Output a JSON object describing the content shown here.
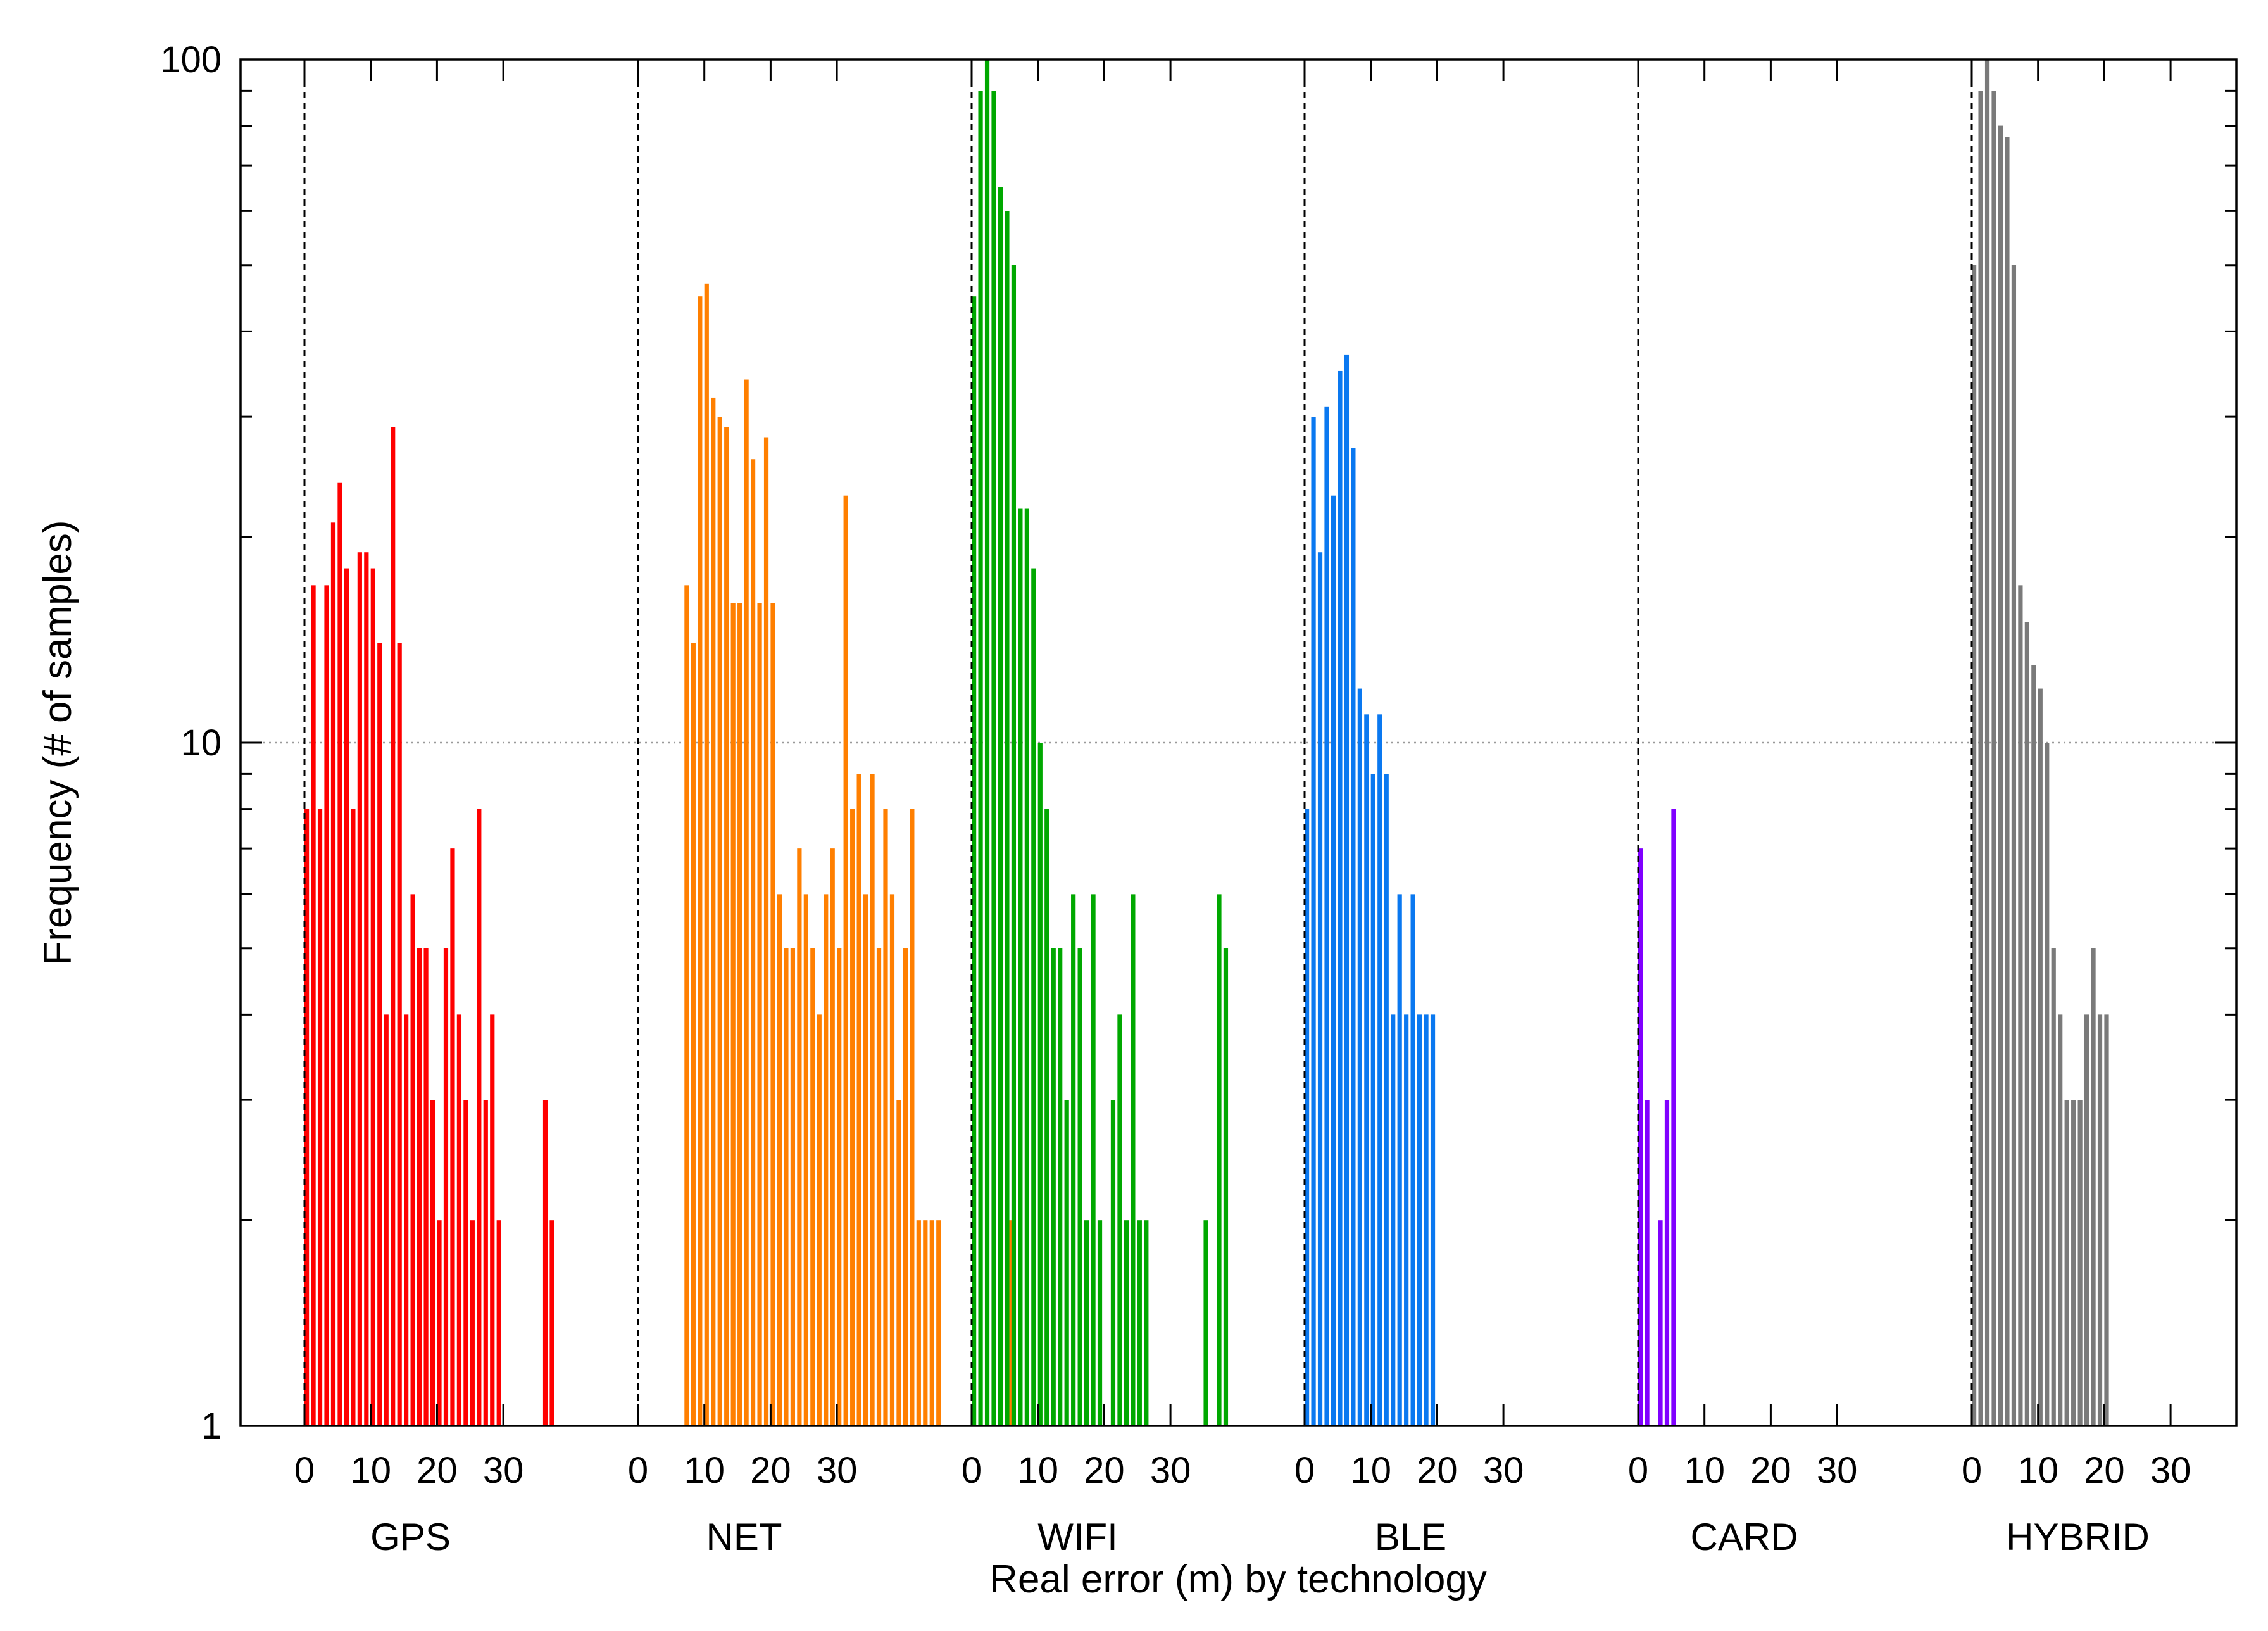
{
  "chart_data": {
    "type": "bar",
    "title": "",
    "xlabel": "Real error (m) by technology",
    "ylabel": "Frequency (# of samples)",
    "yscale": "log",
    "ylim": [
      1,
      100
    ],
    "y_ticks": [
      "1",
      "10",
      "100"
    ],
    "x_tick_labels": [
      "0",
      "10",
      "20",
      "30"
    ],
    "grid": "horizontal dotted line at 10",
    "bin_width_m": 1,
    "groups": [
      {
        "name": "GPS",
        "color": "#ff0000",
        "values": [
          8,
          17,
          8,
          17,
          21,
          24,
          18,
          8,
          19,
          19,
          18,
          14,
          4,
          29,
          14,
          4,
          6,
          5,
          5,
          3,
          2,
          5,
          7,
          4,
          3,
          2,
          8,
          3,
          4,
          2,
          0,
          0,
          0,
          0,
          0,
          0,
          3,
          2
        ]
      },
      {
        "name": "NET",
        "color": "#ff7f00",
        "values": [
          0,
          0,
          0,
          0,
          0,
          0,
          0,
          17,
          14,
          45,
          47,
          32,
          30,
          29,
          16,
          16,
          34,
          26,
          16,
          28,
          16,
          6,
          5,
          5,
          7,
          6,
          5,
          4,
          6,
          7,
          5,
          23,
          8,
          9,
          6,
          9,
          5,
          8,
          6,
          3,
          5,
          8,
          2,
          2,
          2,
          2,
          0,
          0,
          0,
          0,
          0,
          0,
          0,
          0,
          0,
          0,
          2
        ]
      },
      {
        "name": "WIFI",
        "color": "#00a800",
        "values": [
          45,
          90,
          100,
          90,
          65,
          60,
          50,
          22,
          22,
          18,
          10,
          8,
          5,
          5,
          3,
          6,
          5,
          2,
          6,
          2,
          0,
          3,
          4,
          2,
          6,
          2,
          2,
          0,
          0,
          0,
          0,
          0,
          0,
          0,
          0,
          2,
          0,
          6,
          5
        ]
      },
      {
        "name": "BLE",
        "color": "#0a78f0",
        "values": [
          8,
          30,
          19,
          31,
          23,
          35,
          37,
          27,
          12,
          11,
          9,
          11,
          9,
          4,
          6,
          4,
          6,
          4,
          4,
          4
        ]
      },
      {
        "name": "CARD",
        "color": "#8000ff",
        "values": [
          7,
          3,
          0,
          2,
          3,
          8
        ]
      },
      {
        "name": "HYBRID",
        "color": "#7a7a7a",
        "values": [
          50,
          90,
          100,
          90,
          80,
          77,
          50,
          17,
          15,
          13,
          12,
          10,
          5,
          4,
          3,
          3,
          3,
          4,
          5,
          4,
          4
        ]
      }
    ]
  }
}
